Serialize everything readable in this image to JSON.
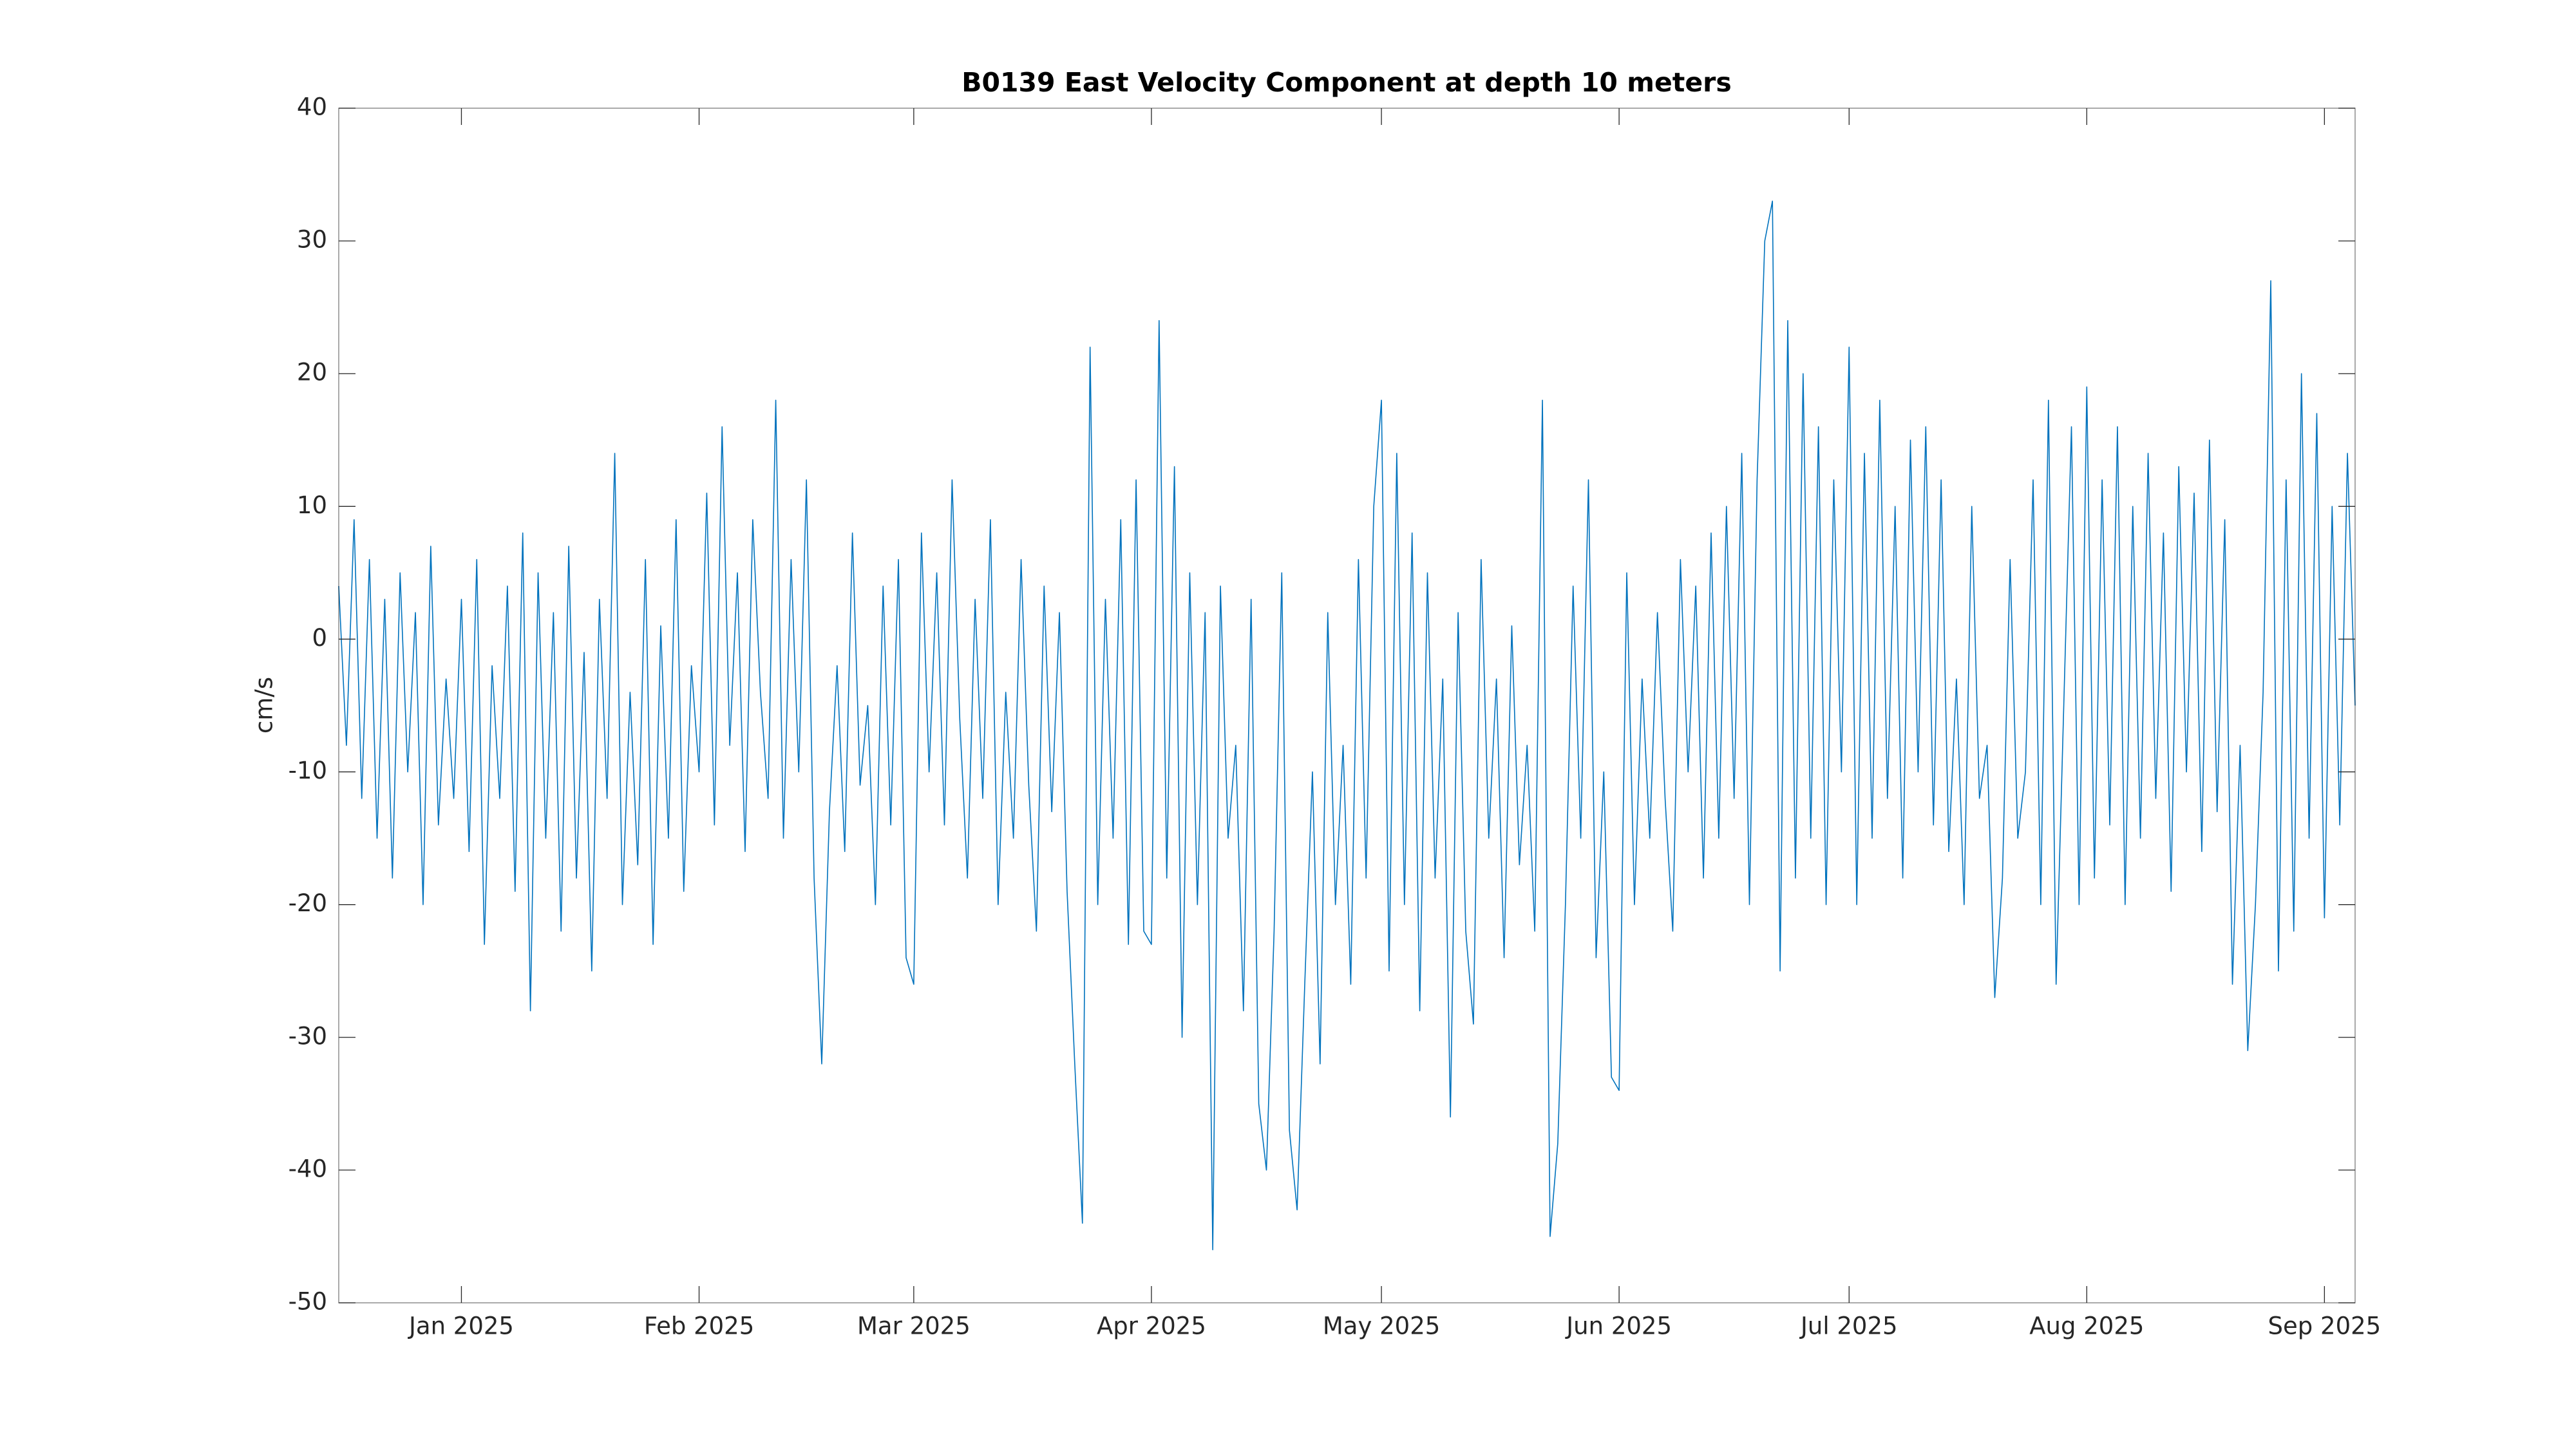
{
  "chart_data": {
    "type": "line",
    "title": "B0139 East Velocity Component at depth 10 meters",
    "ylabel": "cm/s",
    "color": "#0072bd",
    "xlim": [
      "2024-12-16",
      "2025-09-05"
    ],
    "xticks": [
      {
        "value": "2025-01-01",
        "label": "Jan 2025"
      },
      {
        "value": "2025-02-01",
        "label": "Feb 2025"
      },
      {
        "value": "2025-03-01",
        "label": "Mar 2025"
      },
      {
        "value": "2025-04-01",
        "label": "Apr 2025"
      },
      {
        "value": "2025-05-01",
        "label": "May 2025"
      },
      {
        "value": "2025-06-01",
        "label": "Jun 2025"
      },
      {
        "value": "2025-07-01",
        "label": "Jul 2025"
      },
      {
        "value": "2025-08-01",
        "label": "Aug 2025"
      },
      {
        "value": "2025-09-01",
        "label": "Sep 2025"
      }
    ],
    "ylim": [
      -50,
      40
    ],
    "yticks": [
      -50,
      -40,
      -30,
      -20,
      -10,
      0,
      10,
      20,
      30,
      40
    ],
    "grid": false,
    "x": [
      "2024-12-16",
      "2024-12-17",
      "2024-12-18",
      "2024-12-19",
      "2024-12-20",
      "2024-12-21",
      "2024-12-22",
      "2024-12-23",
      "2024-12-24",
      "2024-12-25",
      "2024-12-26",
      "2024-12-27",
      "2024-12-28",
      "2024-12-29",
      "2024-12-30",
      "2024-12-31",
      "2025-01-01",
      "2025-01-02",
      "2025-01-03",
      "2025-01-04",
      "2025-01-05",
      "2025-01-06",
      "2025-01-07",
      "2025-01-08",
      "2025-01-09",
      "2025-01-10",
      "2025-01-11",
      "2025-01-12",
      "2025-01-13",
      "2025-01-14",
      "2025-01-15",
      "2025-01-16",
      "2025-01-17",
      "2025-01-18",
      "2025-01-19",
      "2025-01-20",
      "2025-01-21",
      "2025-01-22",
      "2025-01-23",
      "2025-01-24",
      "2025-01-25",
      "2025-01-26",
      "2025-01-27",
      "2025-01-28",
      "2025-01-29",
      "2025-01-30",
      "2025-01-31",
      "2025-02-01",
      "2025-02-02",
      "2025-02-03",
      "2025-02-04",
      "2025-02-05",
      "2025-02-06",
      "2025-02-07",
      "2025-02-08",
      "2025-02-09",
      "2025-02-10",
      "2025-02-11",
      "2025-02-12",
      "2025-02-13",
      "2025-02-14",
      "2025-02-15",
      "2025-02-16",
      "2025-02-17",
      "2025-02-18",
      "2025-02-19",
      "2025-02-20",
      "2025-02-21",
      "2025-02-22",
      "2025-02-23",
      "2025-02-24",
      "2025-02-25",
      "2025-02-26",
      "2025-02-27",
      "2025-02-28",
      "2025-03-01",
      "2025-03-02",
      "2025-03-03",
      "2025-03-04",
      "2025-03-05",
      "2025-03-06",
      "2025-03-07",
      "2025-03-08",
      "2025-03-09",
      "2025-03-10",
      "2025-03-11",
      "2025-03-12",
      "2025-03-13",
      "2025-03-14",
      "2025-03-15",
      "2025-03-16",
      "2025-03-17",
      "2025-03-18",
      "2025-03-19",
      "2025-03-20",
      "2025-03-21",
      "2025-03-22",
      "2025-03-23",
      "2025-03-24",
      "2025-03-25",
      "2025-03-26",
      "2025-03-27",
      "2025-03-28",
      "2025-03-29",
      "2025-03-30",
      "2025-03-31",
      "2025-04-01",
      "2025-04-02",
      "2025-04-03",
      "2025-04-04",
      "2025-04-05",
      "2025-04-06",
      "2025-04-07",
      "2025-04-08",
      "2025-04-09",
      "2025-04-10",
      "2025-04-11",
      "2025-04-12",
      "2025-04-13",
      "2025-04-14",
      "2025-04-15",
      "2025-04-16",
      "2025-04-17",
      "2025-04-18",
      "2025-04-19",
      "2025-04-20",
      "2025-04-21",
      "2025-04-22",
      "2025-04-23",
      "2025-04-24",
      "2025-04-25",
      "2025-04-26",
      "2025-04-27",
      "2025-04-28",
      "2025-04-29",
      "2025-04-30",
      "2025-05-01",
      "2025-05-02",
      "2025-05-03",
      "2025-05-04",
      "2025-05-05",
      "2025-05-06",
      "2025-05-07",
      "2025-05-08",
      "2025-05-09",
      "2025-05-10",
      "2025-05-11",
      "2025-05-12",
      "2025-05-13",
      "2025-05-14",
      "2025-05-15",
      "2025-05-16",
      "2025-05-17",
      "2025-05-18",
      "2025-05-19",
      "2025-05-20",
      "2025-05-21",
      "2025-05-22",
      "2025-05-23",
      "2025-05-24",
      "2025-05-25",
      "2025-05-26",
      "2025-05-27",
      "2025-05-28",
      "2025-05-29",
      "2025-05-30",
      "2025-05-31",
      "2025-06-01",
      "2025-06-02",
      "2025-06-03",
      "2025-06-04",
      "2025-06-05",
      "2025-06-06",
      "2025-06-07",
      "2025-06-08",
      "2025-06-09",
      "2025-06-10",
      "2025-06-11",
      "2025-06-12",
      "2025-06-13",
      "2025-06-14",
      "2025-06-15",
      "2025-06-16",
      "2025-06-17",
      "2025-06-18",
      "2025-06-19",
      "2025-06-20",
      "2025-06-21",
      "2025-06-22",
      "2025-06-23",
      "2025-06-24",
      "2025-06-25",
      "2025-06-26",
      "2025-06-27",
      "2025-06-28",
      "2025-06-29",
      "2025-06-30",
      "2025-07-01",
      "2025-07-02",
      "2025-07-03",
      "2025-07-04",
      "2025-07-05",
      "2025-07-06",
      "2025-07-07",
      "2025-07-08",
      "2025-07-09",
      "2025-07-10",
      "2025-07-11",
      "2025-07-12",
      "2025-07-13",
      "2025-07-14",
      "2025-07-15",
      "2025-07-16",
      "2025-07-17",
      "2025-07-18",
      "2025-07-19",
      "2025-07-20",
      "2025-07-21",
      "2025-07-22",
      "2025-07-23",
      "2025-07-24",
      "2025-07-25",
      "2025-07-26",
      "2025-07-27",
      "2025-07-28",
      "2025-07-29",
      "2025-07-30",
      "2025-07-31",
      "2025-08-01",
      "2025-08-02",
      "2025-08-03",
      "2025-08-04",
      "2025-08-05",
      "2025-08-06",
      "2025-08-07",
      "2025-08-08",
      "2025-08-09",
      "2025-08-10",
      "2025-08-11",
      "2025-08-12",
      "2025-08-13",
      "2025-08-14",
      "2025-08-15",
      "2025-08-16",
      "2025-08-17",
      "2025-08-18",
      "2025-08-19",
      "2025-08-20",
      "2025-08-21",
      "2025-08-22",
      "2025-08-23",
      "2025-08-24",
      "2025-08-25",
      "2025-08-26",
      "2025-08-27",
      "2025-08-28",
      "2025-08-29",
      "2025-08-30",
      "2025-08-31",
      "2025-09-01",
      "2025-09-02",
      "2025-09-03",
      "2025-09-04",
      "2025-09-05"
    ],
    "values": [
      4,
      -8,
      9,
      -12,
      6,
      -15,
      3,
      -18,
      5,
      -10,
      2,
      -20,
      7,
      -14,
      -3,
      -12,
      3,
      -16,
      6,
      -23,
      -2,
      -12,
      4,
      -19,
      8,
      -28,
      5,
      -15,
      2,
      -22,
      7,
      -18,
      -1,
      -25,
      3,
      -12,
      14,
      -20,
      -4,
      -17,
      6,
      -23,
      1,
      -15,
      9,
      -19,
      -2,
      -10,
      11,
      -14,
      16,
      -8,
      5,
      -16,
      9,
      -4,
      -12,
      18,
      -15,
      6,
      -10,
      12,
      -18,
      -32,
      -13,
      -2,
      -16,
      8,
      -11,
      -5,
      -20,
      4,
      -14,
      6,
      -24,
      -26,
      8,
      -10,
      5,
      -14,
      12,
      -6,
      -18,
      3,
      -12,
      9,
      -20,
      -4,
      -15,
      6,
      -11,
      -22,
      4,
      -13,
      2,
      -19,
      -32,
      -44,
      22,
      -20,
      3,
      -15,
      9,
      -23,
      12,
      -22,
      -23,
      24,
      -18,
      13,
      -30,
      5,
      -20,
      2,
      -46,
      4,
      -15,
      -8,
      -28,
      3,
      -35,
      -40,
      -22,
      5,
      -37,
      -43,
      -26,
      -10,
      -32,
      2,
      -20,
      -8,
      -26,
      6,
      -18,
      10,
      18,
      -25,
      14,
      -20,
      8,
      -28,
      5,
      -18,
      -3,
      -36,
      2,
      -22,
      -29,
      6,
      -15,
      -3,
      -24,
      1,
      -17,
      -8,
      -22,
      18,
      -45,
      -38,
      -20,
      4,
      -15,
      12,
      -24,
      -10,
      -33,
      -34,
      5,
      -20,
      -3,
      -15,
      2,
      -12,
      -22,
      6,
      -10,
      4,
      -18,
      8,
      -15,
      10,
      -12,
      14,
      -20,
      12,
      30,
      33,
      -25,
      24,
      -18,
      20,
      -15,
      16,
      -20,
      12,
      -10,
      22,
      -20,
      14,
      -15,
      18,
      -12,
      10,
      -18,
      15,
      -10,
      16,
      -14,
      12,
      -16,
      -3,
      -20,
      10,
      -12,
      -8,
      -27,
      -18,
      6,
      -15,
      -10,
      12,
      -20,
      18,
      -26,
      -5,
      16,
      -20,
      19,
      -18,
      12,
      -14,
      16,
      -20,
      10,
      -15,
      14,
      -12,
      8,
      -19,
      13,
      -10,
      11,
      -16,
      15,
      -13,
      9,
      -26,
      -8,
      -31,
      -20,
      -4,
      27,
      -25,
      12,
      -22,
      20,
      -15,
      17,
      -21,
      10,
      -14,
      14,
      -5
    ]
  }
}
